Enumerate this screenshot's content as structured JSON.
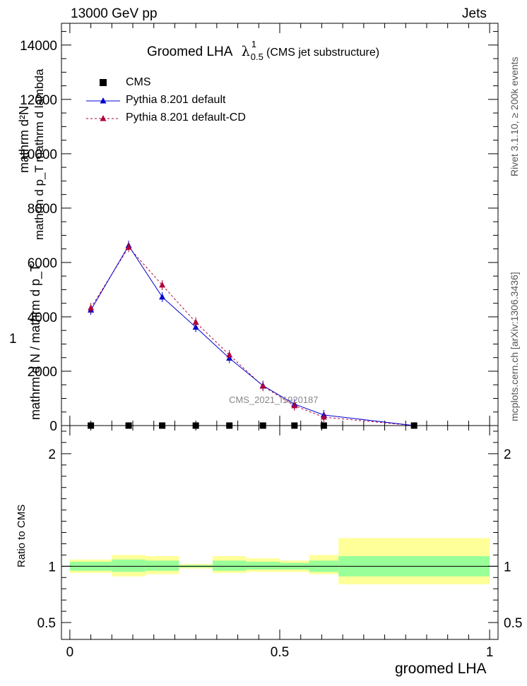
{
  "header": {
    "left": "13000 GeV pp",
    "right": "Jets"
  },
  "title": {
    "main": "Groomed LHA",
    "symbol": "λ",
    "sup": "1",
    "sub": "0.5",
    "suffix": "(CMS jet substructure)"
  },
  "side_labels": {
    "rivet": "Rivet 3.1.10, ≥ 200k events",
    "mcplots": "mcplots.cern.ch [arXiv:1306.3436]"
  },
  "watermark": "CMS_2021_I1920187",
  "ylabel_top": {
    "one": "1",
    "frac_num": "mathrm d²N",
    "frac_den": "mathrm d p_T mathrm d lambda",
    "outer_num": "mathrm d N / mathrm d p_T",
    "outer_den_hidden": ""
  },
  "ylabel_bottom": "Ratio to CMS",
  "xlabel": "groomed LHA",
  "legend": [
    {
      "label": "CMS",
      "color": "#000000",
      "style": "square"
    },
    {
      "label": "Pythia 8.201 default",
      "color": "#0000cc",
      "style": "line"
    },
    {
      "label": "Pythia 8.201 default-CD",
      "color": "#b0003a",
      "style": "dash"
    }
  ],
  "colors": {
    "cms": "#000000",
    "default": "#0000cc",
    "defaultCD": "#b0003a",
    "band_inner": "#99ff99",
    "band_outer": "#ffff99"
  },
  "chart_data": {
    "type": "line",
    "xlim": [
      -0.02,
      1.02
    ],
    "upper": {
      "ylim": [
        0,
        14800
      ],
      "yticks": [
        0,
        2000,
        4000,
        6000,
        8000,
        10000,
        12000,
        14000
      ],
      "ytick_labels": [
        "0",
        "2000",
        "4000",
        "6000",
        "8000",
        "10000",
        "12000",
        "14000"
      ],
      "series": [
        {
          "name": "CMS",
          "x": [
            0.05,
            0.14,
            0.22,
            0.3,
            0.38,
            0.46,
            0.535,
            0.605,
            0.82
          ],
          "y": [
            0,
            0,
            0,
            0,
            0,
            0,
            0,
            0,
            0
          ]
        },
        {
          "name": "Pythia 8.201 default",
          "x": [
            0.05,
            0.14,
            0.22,
            0.3,
            0.38,
            0.46,
            0.535,
            0.605,
            0.82
          ],
          "y": [
            4250,
            6620,
            4730,
            3620,
            2480,
            1470,
            790,
            390,
            0
          ]
        },
        {
          "name": "Pythia 8.201 default-CD",
          "x": [
            0.05,
            0.14,
            0.22,
            0.3,
            0.38,
            0.46,
            0.535,
            0.605,
            0.82
          ],
          "y": [
            4330,
            6560,
            5170,
            3800,
            2600,
            1450,
            730,
            310,
            0
          ]
        }
      ]
    },
    "ratio": {
      "ylim": [
        0.35,
        2.25
      ],
      "yticks": [
        0.5,
        1,
        2
      ],
      "ytick_labels": [
        "0.5",
        "1",
        "2"
      ],
      "bins": [
        0,
        0.1,
        0.18,
        0.26,
        0.34,
        0.42,
        0.5,
        0.57,
        0.64,
        1.0
      ],
      "inner_lo": [
        0.96,
        0.95,
        0.96,
        0.99,
        0.96,
        0.97,
        0.97,
        0.95,
        0.91
      ],
      "inner_hi": [
        1.04,
        1.06,
        1.05,
        1.01,
        1.05,
        1.04,
        1.03,
        1.05,
        1.09
      ],
      "outer_lo": [
        0.94,
        0.91,
        0.93,
        0.98,
        0.94,
        0.95,
        0.95,
        0.93,
        0.84
      ],
      "outer_hi": [
        1.06,
        1.1,
        1.09,
        1.02,
        1.09,
        1.07,
        1.05,
        1.1,
        1.25
      ]
    },
    "xticks": [
      0,
      0.5,
      1
    ],
    "xtick_labels": [
      "0",
      "0.5",
      "1"
    ]
  }
}
